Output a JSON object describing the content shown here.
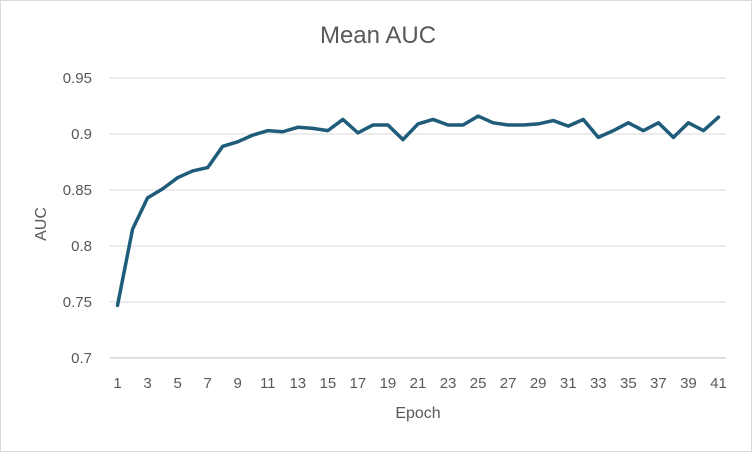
{
  "chart_data": {
    "type": "line",
    "title": "Mean AUC",
    "xlabel": "Epoch",
    "ylabel": "AUC",
    "ylim": [
      0.7,
      0.95
    ],
    "yticks": [
      "0.7",
      "0.75",
      "0.8",
      "0.85",
      "0.9",
      "0.95"
    ],
    "xticks": [
      "1",
      "3",
      "5",
      "7",
      "9",
      "11",
      "13",
      "15",
      "17",
      "19",
      "21",
      "23",
      "25",
      "27",
      "29",
      "31",
      "33",
      "35",
      "37",
      "39",
      "41"
    ],
    "grid": true,
    "legend": "none",
    "line_color": "#1f5c7a",
    "series": [
      {
        "x": [
          1,
          2,
          3,
          4,
          5,
          6,
          7,
          8,
          9,
          10,
          11,
          12,
          13,
          14,
          15,
          16,
          17,
          18,
          19,
          20,
          21,
          22,
          23,
          24,
          25,
          26,
          27,
          28,
          29,
          30,
          31,
          32,
          33,
          34,
          35,
          36,
          37,
          38,
          39,
          40,
          41
        ],
        "values": [
          0.747,
          0.815,
          0.843,
          0.851,
          0.861,
          0.867,
          0.87,
          0.889,
          0.893,
          0.899,
          0.903,
          0.902,
          0.906,
          0.905,
          0.903,
          0.913,
          0.901,
          0.908,
          0.908,
          0.895,
          0.909,
          0.913,
          0.908,
          0.908,
          0.916,
          0.91,
          0.908,
          0.908,
          0.909,
          0.912,
          0.907,
          0.913,
          0.897,
          0.903,
          0.91,
          0.903,
          0.91,
          0.897,
          0.91,
          0.903,
          0.915
        ]
      }
    ]
  }
}
